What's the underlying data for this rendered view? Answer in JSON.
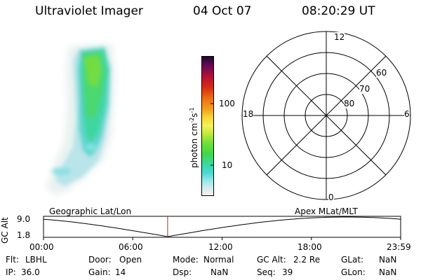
{
  "header": {
    "instrument": "Ultraviolet Imager",
    "date": "04 Oct 07",
    "time": "08:20:29 UT"
  },
  "colorbar": {
    "label": "photon cm",
    "label_sup1": "-2",
    "label_mid": "s",
    "label_sup2": "-1",
    "ticks": [
      "100",
      "10"
    ]
  },
  "polar_grid": {
    "mlt_labels": {
      "top": "12",
      "left": "18",
      "right": "6",
      "bottom": "0"
    },
    "lat_labels": [
      "60",
      "70",
      "80"
    ]
  },
  "orbit_strip": {
    "y_axis_label": "GC Alt",
    "y_max": "9.0",
    "y_min": "1.8",
    "left_title": "Geographic Lat/Lon",
    "right_title": "Apex MLat/MLT",
    "x_ticks": [
      "00:00",
      "06:00",
      "12:00",
      "18:00",
      "23:59"
    ],
    "current_time_hours": 8.341,
    "colors": {
      "marker": "#b03010",
      "curve": "#000000"
    }
  },
  "info": {
    "flt_label": "Flt:",
    "flt_value": "LBHL",
    "ip_label": "IP:",
    "ip_value": "36.0",
    "door_label": "Door:",
    "door_value": "Open",
    "gain_label": "Gain:",
    "gain_value": "14",
    "mode_label": "Mode:",
    "mode_value": "Normal",
    "dsp_label": "Dsp:",
    "dsp_value": "NaN",
    "gcalt_label": "GC Alt:",
    "gcalt_value": "2.2 Re",
    "seq_label": "Seq:",
    "seq_value": "39",
    "glat_label": "GLat:",
    "glat_value": "NaN",
    "glon_label": "GLon:",
    "glon_value": "NaN"
  }
}
